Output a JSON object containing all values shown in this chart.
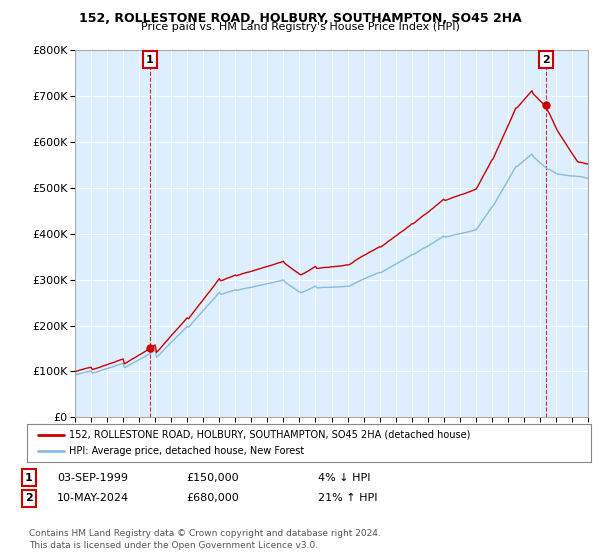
{
  "title1": "152, ROLLESTONE ROAD, HOLBURY, SOUTHAMPTON, SO45 2HA",
  "title2": "Price paid vs. HM Land Registry's House Price Index (HPI)",
  "legend_line1": "152, ROLLESTONE ROAD, HOLBURY, SOUTHAMPTON, SO45 2HA (detached house)",
  "legend_line2": "HPI: Average price, detached house, New Forest",
  "annotation1_date": "03-SEP-1999",
  "annotation1_price": "£150,000",
  "annotation1_hpi": "4% ↓ HPI",
  "annotation2_date": "10-MAY-2024",
  "annotation2_price": "£680,000",
  "annotation2_hpi": "21% ↑ HPI",
  "footnote1": "Contains HM Land Registry data © Crown copyright and database right 2024.",
  "footnote2": "This data is licensed under the Open Government Licence v3.0.",
  "sale1_year": 1999.67,
  "sale1_value": 150000,
  "sale2_year": 2024.37,
  "sale2_value": 680000,
  "line_color_red": "#cc0000",
  "line_color_blue": "#88bbdd",
  "plot_bg": "#ddeeff",
  "ylim": [
    0,
    800000
  ],
  "xlim_start": 1995,
  "xlim_end": 2027,
  "background_color": "#ffffff",
  "grid_color": "#ffffff"
}
